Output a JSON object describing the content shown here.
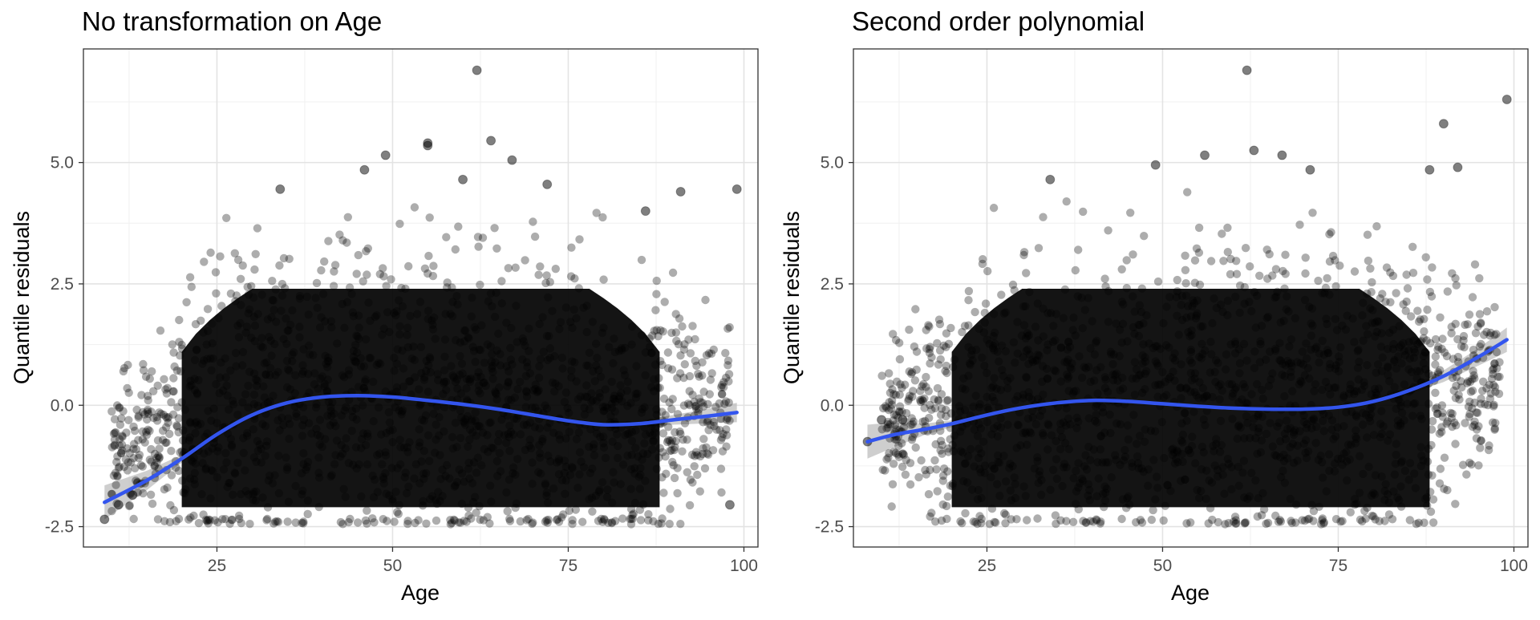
{
  "chart_data": [
    {
      "type": "scatter",
      "title": "No transformation on Age",
      "xlabel": "Age",
      "ylabel": "Quantile residuals",
      "xlim": [
        6,
        102
      ],
      "ylim": [
        -2.92,
        7.34
      ],
      "x_ticks": [
        25,
        50,
        75,
        100
      ],
      "x_tick_labels": [
        "25",
        "50",
        "75",
        "100"
      ],
      "y_ticks": [
        -2.5,
        0.0,
        2.5,
        5.0
      ],
      "y_tick_labels": [
        "-2.5",
        "0.0",
        "2.5",
        "5.0"
      ],
      "grid": true,
      "point_color": "#000000",
      "point_opacity": 0.5,
      "outliers": [
        [
          62,
          6.9
        ],
        [
          55,
          5.4
        ],
        [
          55,
          5.35
        ],
        [
          64,
          5.45
        ],
        [
          49,
          5.15
        ],
        [
          46,
          4.85
        ],
        [
          67,
          5.05
        ],
        [
          34,
          4.45
        ],
        [
          99,
          4.45
        ],
        [
          91,
          4.4
        ],
        [
          86,
          4.0
        ],
        [
          72,
          4.55
        ],
        [
          60,
          4.65
        ],
        [
          13,
          -1.85
        ],
        [
          9,
          -2.35
        ],
        [
          11,
          -2.05
        ],
        [
          98,
          -2.05
        ]
      ],
      "smooth_line": {
        "color": "#3355ee",
        "points": [
          [
            9,
            -2.0
          ],
          [
            15,
            -1.55
          ],
          [
            20,
            -1.1
          ],
          [
            25,
            -0.6
          ],
          [
            30,
            -0.2
          ],
          [
            35,
            0.05
          ],
          [
            40,
            0.17
          ],
          [
            45,
            0.2
          ],
          [
            50,
            0.17
          ],
          [
            55,
            0.1
          ],
          [
            60,
            0.02
          ],
          [
            65,
            -0.08
          ],
          [
            70,
            -0.2
          ],
          [
            75,
            -0.32
          ],
          [
            80,
            -0.4
          ],
          [
            85,
            -0.38
          ],
          [
            90,
            -0.3
          ],
          [
            95,
            -0.22
          ],
          [
            99,
            -0.15
          ]
        ],
        "ci_width": [
          0.35,
          0.2,
          0.08,
          0.06,
          0.05,
          0.05,
          0.04,
          0.04,
          0.04,
          0.04,
          0.04,
          0.04,
          0.05,
          0.05,
          0.05,
          0.06,
          0.1,
          0.15,
          0.2
        ]
      }
    },
    {
      "type": "scatter",
      "title": "Second order polynomial",
      "xlabel": "Age",
      "ylabel": "Quantile residuals",
      "xlim": [
        6,
        102
      ],
      "ylim": [
        -2.92,
        7.34
      ],
      "x_ticks": [
        25,
        50,
        75,
        100
      ],
      "x_tick_labels": [
        "25",
        "50",
        "75",
        "100"
      ],
      "y_ticks": [
        -2.5,
        0.0,
        2.5,
        5.0
      ],
      "y_tick_labels": [
        "-2.5",
        "0.0",
        "2.5",
        "5.0"
      ],
      "grid": true,
      "point_color": "#000000",
      "point_opacity": 0.5,
      "outliers": [
        [
          62,
          6.9
        ],
        [
          99,
          6.3
        ],
        [
          90,
          5.8
        ],
        [
          56,
          5.15
        ],
        [
          63,
          5.25
        ],
        [
          67,
          5.15
        ],
        [
          49,
          4.95
        ],
        [
          71,
          4.85
        ],
        [
          92,
          4.9
        ],
        [
          34,
          4.65
        ],
        [
          88,
          4.85
        ],
        [
          10,
          -0.3
        ],
        [
          8,
          -0.75
        ],
        [
          13,
          -0.3
        ]
      ],
      "smooth_line": {
        "color": "#3355ee",
        "points": [
          [
            8,
            -0.75
          ],
          [
            12,
            -0.6
          ],
          [
            16,
            -0.5
          ],
          [
            20,
            -0.38
          ],
          [
            25,
            -0.2
          ],
          [
            30,
            -0.05
          ],
          [
            35,
            0.05
          ],
          [
            40,
            0.1
          ],
          [
            45,
            0.08
          ],
          [
            50,
            0.03
          ],
          [
            55,
            -0.02
          ],
          [
            60,
            -0.06
          ],
          [
            65,
            -0.08
          ],
          [
            70,
            -0.08
          ],
          [
            75,
            -0.04
          ],
          [
            80,
            0.08
          ],
          [
            85,
            0.3
          ],
          [
            90,
            0.6
          ],
          [
            95,
            1.0
          ],
          [
            99,
            1.35
          ]
        ],
        "ci_width": [
          0.35,
          0.25,
          0.12,
          0.07,
          0.05,
          0.04,
          0.04,
          0.04,
          0.04,
          0.04,
          0.04,
          0.04,
          0.04,
          0.04,
          0.05,
          0.06,
          0.08,
          0.12,
          0.18,
          0.25
        ]
      }
    }
  ]
}
